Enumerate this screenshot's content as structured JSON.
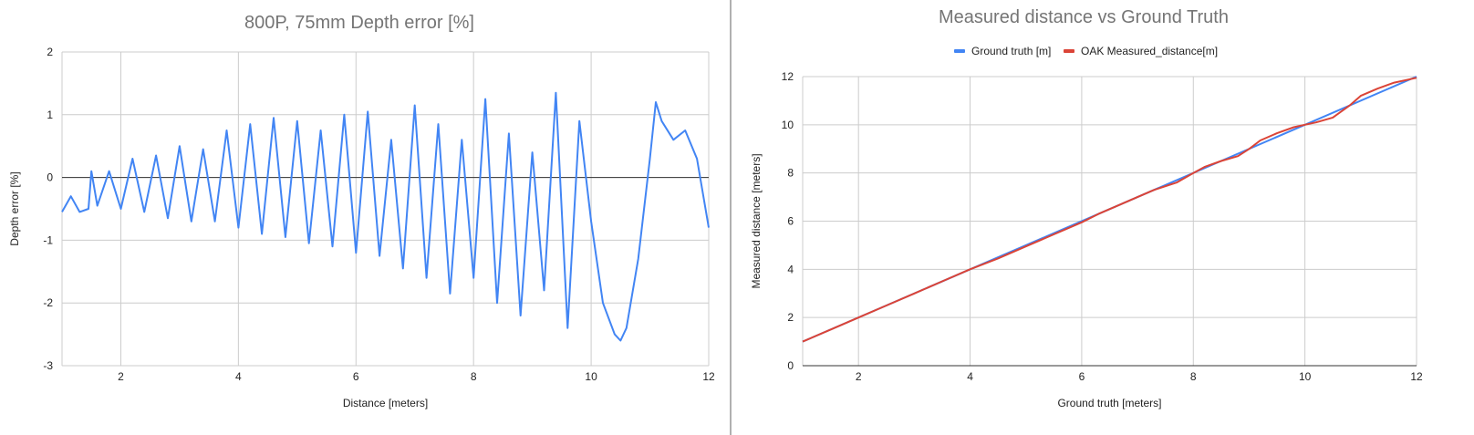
{
  "colors": {
    "blue": "#4285f4",
    "red": "#db4437",
    "divider": "#b0b0b0",
    "grid": "#cccccc",
    "zero_line": "#333333"
  },
  "chart_data": [
    {
      "type": "line",
      "title": "800P, 75mm Depth error [%]",
      "xlabel": "Distance [meters]",
      "ylabel": "Depth error [%]",
      "xlim": [
        1,
        12
      ],
      "ylim": [
        -3,
        2
      ],
      "x_ticks": [
        2,
        4,
        6,
        8,
        10,
        12
      ],
      "x_tick_labels": [
        "2",
        "4",
        "6",
        "8",
        "10",
        "12"
      ],
      "y_ticks": [
        -3,
        -2,
        -1,
        0,
        1,
        2
      ],
      "y_tick_labels": [
        "-3",
        "-2",
        "-1",
        "0",
        "1",
        "2"
      ],
      "grid": true,
      "legend": "none",
      "series": [
        {
          "color": "#4285f4",
          "x": [
            1.0,
            1.15,
            1.3,
            1.45,
            1.5,
            1.6,
            1.8,
            2.0,
            2.2,
            2.4,
            2.6,
            2.8,
            3.0,
            3.2,
            3.4,
            3.6,
            3.8,
            4.0,
            4.2,
            4.4,
            4.6,
            4.8,
            5.0,
            5.2,
            5.4,
            5.6,
            5.8,
            6.0,
            6.2,
            6.4,
            6.6,
            6.8,
            7.0,
            7.2,
            7.4,
            7.6,
            7.8,
            8.0,
            8.2,
            8.4,
            8.6,
            8.8,
            9.0,
            9.2,
            9.4,
            9.6,
            9.8,
            10.0,
            10.2,
            10.4,
            10.5,
            10.6,
            10.8,
            11.0,
            11.1,
            11.2,
            11.4,
            11.6,
            11.8,
            12.0
          ],
          "y": [
            -0.55,
            -0.3,
            -0.55,
            -0.5,
            0.1,
            -0.45,
            0.1,
            -0.5,
            0.3,
            -0.55,
            0.35,
            -0.65,
            0.5,
            -0.7,
            0.45,
            -0.7,
            0.75,
            -0.8,
            0.85,
            -0.9,
            0.95,
            -0.95,
            0.9,
            -1.05,
            0.75,
            -1.1,
            1.0,
            -1.2,
            1.05,
            -1.25,
            0.6,
            -1.45,
            1.15,
            -1.6,
            0.85,
            -1.85,
            0.6,
            -1.6,
            1.25,
            -2.0,
            0.7,
            -2.2,
            0.4,
            -1.8,
            1.35,
            -2.4,
            0.9,
            -0.7,
            -2.0,
            -2.5,
            -2.6,
            -2.4,
            -1.3,
            0.3,
            1.2,
            0.9,
            0.6,
            0.75,
            0.3,
            -0.8
          ]
        }
      ]
    },
    {
      "type": "line",
      "title": "Measured distance vs Ground Truth",
      "xlabel": "Ground truth [meters]",
      "ylabel": "Measured distance [meters]",
      "xlim": [
        1,
        12
      ],
      "ylim": [
        0,
        12
      ],
      "x_ticks": [
        2,
        4,
        6,
        8,
        10,
        12
      ],
      "x_tick_labels": [
        "2",
        "4",
        "6",
        "8",
        "10",
        "12"
      ],
      "y_ticks": [
        0,
        2,
        4,
        6,
        8,
        10,
        12
      ],
      "y_tick_labels": [
        "0",
        "2",
        "4",
        "6",
        "8",
        "10",
        "12"
      ],
      "grid": true,
      "legend": "top",
      "series": [
        {
          "name": "Ground truth [m]",
          "color": "#4285f4",
          "x": [
            1,
            12
          ],
          "y": [
            1,
            12
          ]
        },
        {
          "name": "OAK Measured_distance[m]",
          "color": "#db4437",
          "x": [
            1.0,
            1.5,
            2.0,
            2.5,
            3.0,
            3.5,
            4.0,
            4.5,
            5.0,
            5.5,
            6.0,
            6.3,
            6.6,
            7.0,
            7.3,
            7.7,
            8.0,
            8.2,
            8.5,
            8.8,
            9.0,
            9.2,
            9.5,
            9.8,
            10.0,
            10.2,
            10.5,
            10.8,
            11.0,
            11.3,
            11.6,
            12.0
          ],
          "y": [
            1.0,
            1.5,
            2.0,
            2.5,
            3.0,
            3.5,
            4.0,
            4.45,
            4.95,
            5.45,
            5.95,
            6.3,
            6.6,
            7.0,
            7.3,
            7.6,
            8.0,
            8.25,
            8.5,
            8.7,
            9.0,
            9.35,
            9.65,
            9.9,
            10.0,
            10.1,
            10.3,
            10.8,
            11.2,
            11.5,
            11.75,
            11.95
          ]
        }
      ]
    }
  ]
}
